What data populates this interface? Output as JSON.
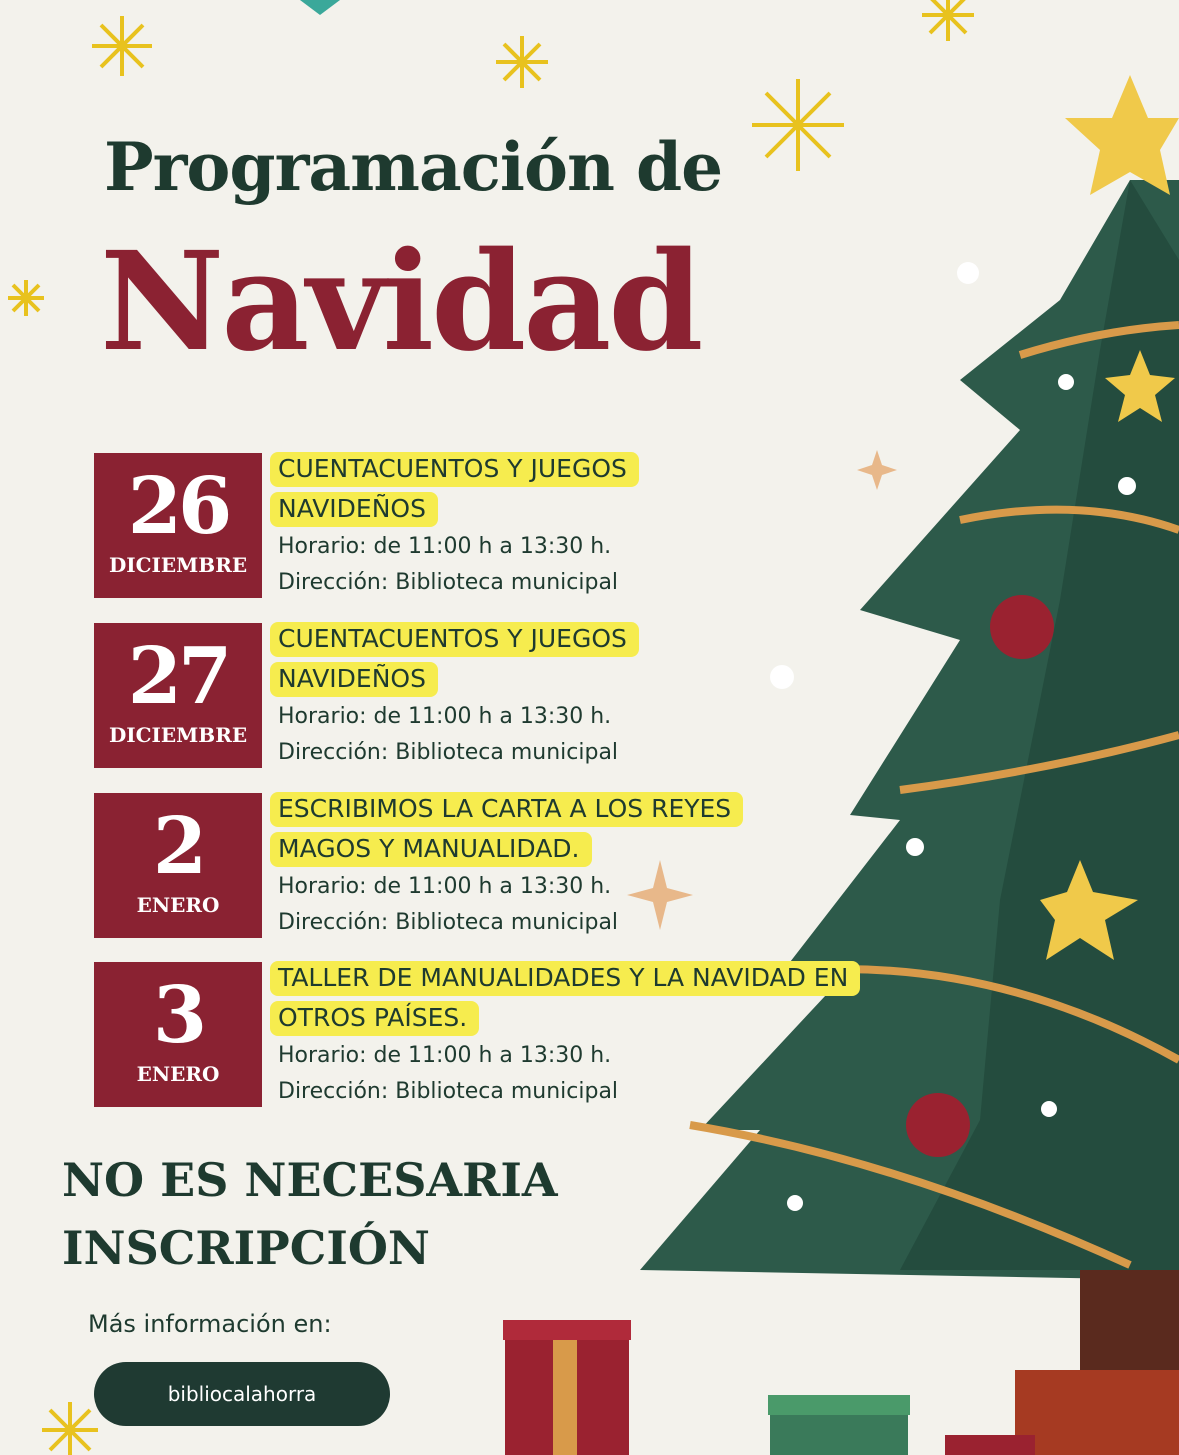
{
  "title": {
    "line1": "Programación de",
    "line2": "Navidad"
  },
  "events": [
    {
      "day": "26",
      "month": "DICIEMBRE",
      "title": "CUENTACUENTOS Y JUEGOS NAVIDEÑOS",
      "schedule": "Horario: de 11:00 h a 13:30 h.",
      "address": "Dirección: Biblioteca municipal"
    },
    {
      "day": "27",
      "month": "DICIEMBRE",
      "title": "CUENTACUENTOS Y JUEGOS NAVIDEÑOS",
      "schedule": "Horario: de 11:00 h a 13:30 h.",
      "address": "Dirección: Biblioteca municipal"
    },
    {
      "day": "2",
      "month": "ENERO",
      "title": "ESCRIBIMOS LA CARTA A LOS REYES MAGOS Y MANUALIDAD.",
      "schedule": "Horario: de 11:00 h a 13:30 h.",
      "address": "Dirección: Biblioteca municipal"
    },
    {
      "day": "3",
      "month": "ENERO",
      "title": "TALLER DE MANUALIDADES Y LA NAVIDAD EN OTROS PAÍSES.",
      "schedule": "Horario: de 11:00 h a 13:30 h.",
      "address": "Dirección: Biblioteca municipal"
    }
  ],
  "notice": {
    "line1": "NO ES NECESARIA",
    "line2": "INSCRIPCIÓN"
  },
  "more_info": {
    "label": "Más información en:",
    "handle": "bibliocalahorra"
  },
  "colors": {
    "background": "#f3f2ec",
    "dark_green": "#1e3a2f",
    "red": "#8a2232",
    "highlight": "#f6ec4e",
    "tree": "#2d5a4a",
    "gold": "#f0c94a"
  },
  "icons": [
    "snowflake-icon",
    "christmas-tree-icon",
    "star-icon",
    "ornament-icon",
    "gift-icon"
  ]
}
